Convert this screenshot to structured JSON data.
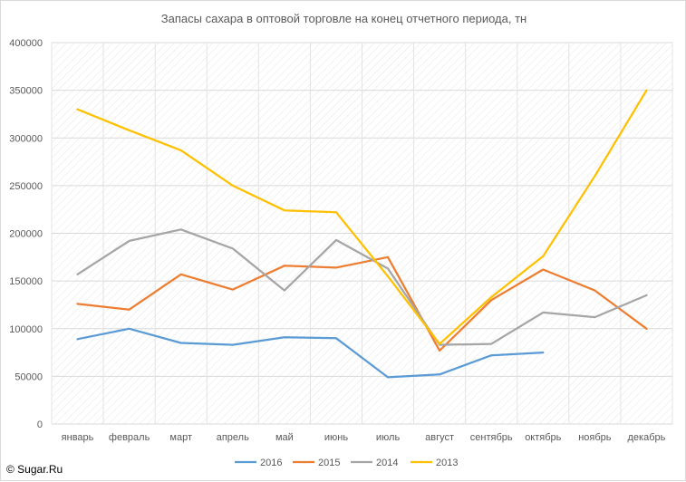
{
  "chart_data": {
    "type": "line",
    "title": "Запасы сахара в оптовой торговле на конец отчетного периода, тн",
    "xlabel": "",
    "ylabel": "",
    "categories": [
      "январь",
      "февраль",
      "март",
      "апрель",
      "май",
      "июнь",
      "июль",
      "август",
      "сентябрь",
      "октябрь",
      "ноябрь",
      "декабрь"
    ],
    "ylim": [
      0,
      400000
    ],
    "yticks": [
      "0",
      "50000",
      "100000",
      "150000",
      "200000",
      "250000",
      "300000",
      "350000",
      "400000"
    ],
    "grid": true,
    "legend_position": "bottom",
    "series": [
      {
        "name": "2016",
        "color": "#5b9bd5",
        "values": [
          89000,
          100000,
          85000,
          83000,
          91000,
          90000,
          49000,
          52000,
          72000,
          75000,
          null,
          null
        ]
      },
      {
        "name": "2015",
        "color": "#ed7d31",
        "values": [
          126000,
          120000,
          157000,
          141000,
          166000,
          164000,
          175000,
          77000,
          130000,
          162000,
          140000,
          100000
        ]
      },
      {
        "name": "2014",
        "color": "#a5a5a5",
        "values": [
          157000,
          192000,
          204000,
          184000,
          140000,
          193000,
          163000,
          83000,
          84000,
          117000,
          112000,
          135000
        ]
      },
      {
        "name": "2013",
        "color": "#ffc000",
        "values": [
          330000,
          308000,
          287000,
          250000,
          224000,
          222000,
          155000,
          84000,
          133000,
          176000,
          260000,
          350000
        ]
      }
    ]
  },
  "footer": {
    "copyright": "© Sugar.Ru"
  }
}
